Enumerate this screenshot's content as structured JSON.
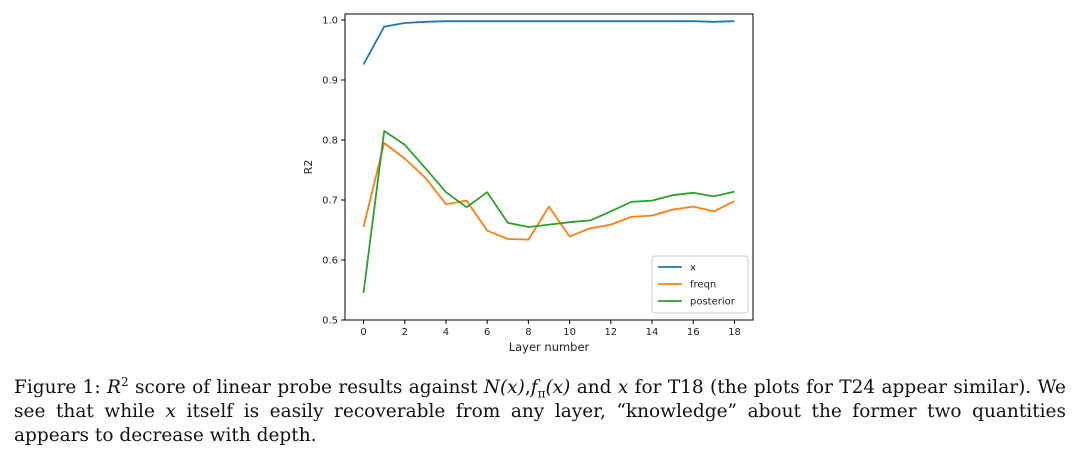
{
  "chart_data": {
    "type": "line",
    "xlabel": "Layer number",
    "ylabel": "R2",
    "xlim": [
      -0.9,
      18.9
    ],
    "ylim": [
      0.5,
      1.01
    ],
    "xticks": [
      0,
      2,
      4,
      6,
      8,
      10,
      12,
      14,
      16,
      18
    ],
    "yticks": [
      0.5,
      0.6,
      0.7,
      0.8,
      0.9,
      1.0
    ],
    "ytick_labels": [
      "0.5",
      "0.6",
      "0.7",
      "0.8",
      "0.9",
      "1.0"
    ],
    "grid": false,
    "legend_position": "bottom-right",
    "x": [
      0,
      1,
      2,
      3,
      4,
      5,
      6,
      7,
      8,
      9,
      10,
      11,
      12,
      13,
      14,
      15,
      16,
      17,
      18
    ],
    "series": [
      {
        "name": "x",
        "color": "#1f77b4",
        "values": [
          0.926,
          0.989,
          0.995,
          0.997,
          0.998,
          0.998,
          0.998,
          0.998,
          0.998,
          0.998,
          0.998,
          0.998,
          0.998,
          0.998,
          0.998,
          0.998,
          0.998,
          0.997,
          0.998
        ]
      },
      {
        "name": "freqn",
        "color": "#ff7f0e",
        "values": [
          0.655,
          0.795,
          0.769,
          0.737,
          0.693,
          0.699,
          0.649,
          0.635,
          0.634,
          0.689,
          0.639,
          0.653,
          0.659,
          0.672,
          0.674,
          0.684,
          0.689,
          0.681,
          0.698
        ]
      },
      {
        "name": "posterior",
        "color": "#2ca02c",
        "values": [
          0.545,
          0.815,
          0.792,
          0.753,
          0.713,
          0.688,
          0.713,
          0.662,
          0.655,
          0.659,
          0.663,
          0.666,
          0.681,
          0.697,
          0.699,
          0.708,
          0.712,
          0.706,
          0.714
        ]
      }
    ]
  },
  "caption": {
    "label": "Figure 1:",
    "r": "R",
    "r_sup": "2",
    "t1": " score of linear probe results against ",
    "nx": "N(x)",
    "comma": ",",
    "f": "f",
    "f_sub": "π",
    "fx": "(x)",
    "t2": " and ",
    "x1": "x",
    "t3": " for T18 (the plots for T24 appear similar). We see that while ",
    "x2": "x",
    "t4": " itself is easily recoverable from any layer, “knowledge” about the former two quantities appears to decrease with depth."
  }
}
